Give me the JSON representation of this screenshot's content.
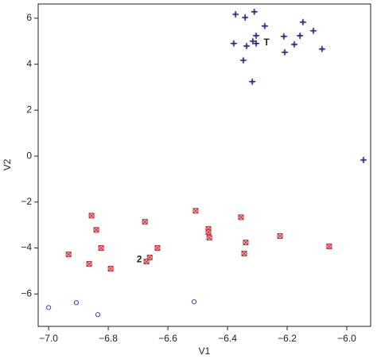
{
  "chart_data": {
    "type": "scatter",
    "x_label": "V1",
    "y_label": "V2",
    "xlim": [
      -7.035,
      -5.92
    ],
    "ylim": [
      -7.41,
      6.62
    ],
    "xticks": [
      {
        "value": -7.0,
        "label": "−7.0"
      },
      {
        "value": -6.8,
        "label": "−6.8"
      },
      {
        "value": -6.6,
        "label": "−6.6"
      },
      {
        "value": -6.4,
        "label": "−6.4"
      },
      {
        "value": -6.2,
        "label": "−6.2"
      },
      {
        "value": -6.0,
        "label": "−6.0"
      }
    ],
    "yticks": [
      {
        "value": -6,
        "label": "−6"
      },
      {
        "value": -4,
        "label": "−4"
      },
      {
        "value": -2,
        "label": "−2"
      },
      0,
      2,
      4,
      6
    ],
    "series": [
      {
        "color": "#1c1c6a",
        "marker": "plus",
        "x": [
          -6.373,
          -6.341,
          -6.31,
          -6.147,
          -6.275,
          -6.379,
          -6.336,
          -6.304,
          -6.304,
          -6.315,
          -6.211,
          -6.157,
          -6.112,
          -6.176,
          -6.208,
          -6.347,
          -6.083,
          -6.317,
          -5.944
        ],
        "values": [
          6.17,
          6.03,
          6.28,
          5.83,
          5.66,
          4.9,
          4.79,
          5.24,
          4.9,
          5.0,
          5.21,
          5.24,
          5.45,
          4.86,
          4.52,
          4.17,
          4.66,
          3.24,
          -0.17
        ]
      },
      {
        "color": "#c0303a",
        "marker": "boxx",
        "x": [
          -6.856,
          -6.677,
          -6.507,
          -6.355,
          -6.84,
          -6.464,
          -6.464,
          -6.224,
          -6.339,
          -6.824,
          -6.635,
          -6.461,
          -6.059,
          -6.933,
          -6.661,
          -6.344,
          -6.672,
          -6.864,
          -6.792
        ],
        "values": [
          -2.59,
          -2.86,
          -2.38,
          -2.66,
          -3.21,
          -3.17,
          -3.31,
          -3.48,
          -3.76,
          -4.0,
          -4.0,
          -3.55,
          -3.93,
          -4.28,
          -4.41,
          -4.24,
          -4.59,
          -4.69,
          -4.9
        ]
      },
      {
        "color": "#3344bb",
        "marker": "circle",
        "x": [
          -7.0,
          -6.907,
          -6.835,
          -6.512
        ],
        "values": [
          -6.59,
          -6.38,
          -6.9,
          -6.34
        ]
      }
    ],
    "annotations": [
      {
        "text": "T",
        "x": -6.269,
        "y": 4.93,
        "color": "#000000"
      },
      {
        "text": "2",
        "x": -6.696,
        "y": -4.52,
        "color": "#000000"
      }
    ]
  }
}
